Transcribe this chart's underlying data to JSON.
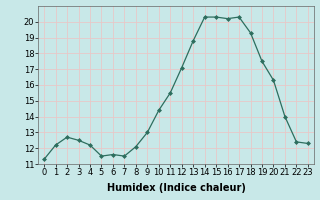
{
  "x": [
    0,
    1,
    2,
    3,
    4,
    5,
    6,
    7,
    8,
    9,
    10,
    11,
    12,
    13,
    14,
    15,
    16,
    17,
    18,
    19,
    20,
    21,
    22,
    23
  ],
  "y": [
    11.3,
    12.2,
    12.7,
    12.5,
    12.2,
    11.5,
    11.6,
    11.5,
    12.1,
    13.0,
    14.4,
    15.5,
    17.1,
    18.8,
    20.3,
    20.3,
    20.2,
    20.3,
    19.3,
    17.5,
    16.3,
    14.0,
    12.4,
    12.3
  ],
  "xlabel": "Humidex (Indice chaleur)",
  "ylim": [
    11,
    21
  ],
  "xlim": [
    -0.5,
    23.5
  ],
  "yticks": [
    11,
    12,
    13,
    14,
    15,
    16,
    17,
    18,
    19,
    20
  ],
  "xticks": [
    0,
    1,
    2,
    3,
    4,
    5,
    6,
    7,
    8,
    9,
    10,
    11,
    12,
    13,
    14,
    15,
    16,
    17,
    18,
    19,
    20,
    21,
    22,
    23
  ],
  "line_color": "#2d6e5e",
  "marker": "D",
  "marker_size": 2.0,
  "bg_color": "#c8e8e8",
  "grid_color": "#e8c8c8",
  "xlabel_fontsize": 7,
  "tick_fontsize": 6,
  "linewidth": 0.9
}
